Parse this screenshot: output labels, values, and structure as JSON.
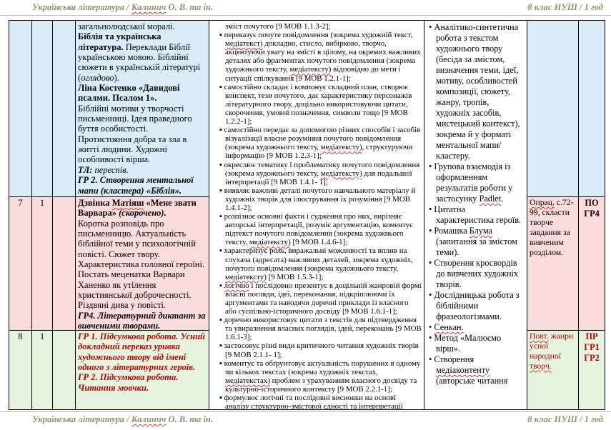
{
  "page": {
    "header_left": "Українська література / Калинич О. В. та ін.",
    "header_right": "8 клас НУШ / 1 год",
    "footer_left": "Українська література / Калинич О. В. та ін.",
    "footer_right": "8 клас НУШ / 1 год"
  },
  "colors": {
    "row_continuation_bg": "#d9ecf8",
    "row7_bg": "#fbdcdc",
    "row8_bg": "#e6f3de",
    "accent_red": "#c00000",
    "header_olive": "#8d9370",
    "spellcheck_red": "#e03a2f"
  },
  "spellcheck_words": [
    "Калинич",
    "медіатексту)",
    "медіатекст)",
    "медіатекстах)",
    "Матіяш",
    "логічно",
    "Padlet",
    "Блума",
    "Сенкан.",
    "медіаконтенту",
    "Опрац.",
    "Повт.",
    "творч."
  ],
  "lessons": [
    {
      "num": "",
      "hours": "",
      "date": ""
    },
    {
      "num": "7",
      "hours": "1",
      "date": ""
    },
    {
      "num": "8",
      "hours": "1",
      "date": ""
    }
  ],
  "topic1": {
    "p1": "загальнолюдської моралі.",
    "p2_bold": "Біблія та українська література.",
    "p2_text": " Переклади Біблії українською мовою. Біблійні сюжети в українській літературі (",
    "p2_italic": "оглядово",
    "p2_end": ").",
    "p3_bold": "Ліна Костенко «Давидові псалми. Псалом 1».",
    "p4": "Біблійні мотиви у творчості письменниці. Ідея праведного буття особистості.",
    "p5": "Протистояння добра та зла в житті людини. Художні особливості вірша.",
    "p6_label": "ТЛ:",
    "p6_italic": " переспів.",
    "p7": "ГР 2. Створення ментальної мапи (кластера) «Біблія»."
  },
  "topic2": {
    "p1_bold": "Дзвінка Матіяш «Мене звати Варвара» ",
    "p1_italic": "(скорочено).",
    "p2": "Коротка розповідь про письменницю. Актуальність біблійної теми у психологічній повісті. Сюжет твору.",
    "p3": "Характеристика головної героїні. Постать меценатки Варвари Ханенко як утілення християнської доброчесності.",
    "p4": "Різдвяні дива у повісті.",
    "p5": "ГР4. Літературний диктант за вивченими творами."
  },
  "topic3": {
    "p1": "ГР 1. Підсумкова робота. Усний докладний переказ уривка художнього твору від імені одного з літературних героїв.",
    "p2": "ГР 2. Підсумкова робота. Читання мовчки."
  },
  "results": {
    "intro": "зміст почутого [9 МОВ 1.1.3-2];",
    "items": [
      "переказує почуте повідомлення (зокрема художній текст, медіатекст) докладно, стисло, вибірково, творчо, акцентуючи увагу на змісті в цілому, на окремих важливих деталях або фрагментах почутого повідомлення (зокрема художнього тексту, медіатексту) відповідно до мети і ситуації спілкування [9 МОВ 1.2.1-1];",
      "самостійно складає і компонує складний план, створює конспект, тези почутого, дає характеристику персонажів літературного твору, доцільно використовуючи цитати, скорочення, умовні позначення, символи тощо [9 МОВ 1.2.2-1];",
      "самостійно передає за допомогою різних способів і засобів візуалізації власне розуміння почутого повідомлення (зокрема художнього тексту, медіатексту), структуруючи інформацію [9 МОВ 1.2.3-1];",
      "окреслює тематику і проблематику почутого повідомлення (зокрема художнього тексту, медіатексту) для подальшої інтерпретації [9 МОВ 1.4.1- 1];",
      "виявляє важливі деталі почутого навчального матеріалу й художніх творів для ілюстрування їх розуміння [9 МОВ 1.4.1-2];",
      "розпізнає основні факти і судження про них, вирізняє авторські інтерпретації, розуміє аргументацію, коментує підтекст почутого повідомлення (зокрема художнього тексту, медіатексту) [9 МОВ 1.4.6-1];",
      "характеризує роль, виражальні можливості та вплив на слухача (адресата) важливих деталей, зокрема художніх, почутого повідомлення (зокрема художнього тексту, медіатексту) [9 МОВ 1.5.3-1];",
      "логічно і послідовно презентує в доцільній жанровій формі власні погляди, ідеї, переконання, підкріплюючи їх аргументами та наводячи доречні приклади із власного або суспільно-історичного досвіду [9 МОВ 1.6.1-1];",
      "доречно використовує цитати з текстів для підтвердження та увиразнення власних поглядів, ідей, переконань [9 МОВ 1.6.1-3];",
      "застосовує різні види критичного читання художніх творів [9 МОВ 2.1.1- 1];",
      "коментує та обґрунтовує актуальність порушених в одному чи кількох текстах (зокрема художніх текстах, медіатекстах) проблем з урахуванням власного досвіду та культурно-історичного контексту [9 МОВ 2.2.1-1];",
      "формулює логічні та послідовні висновки на основі аналізу структурно-змістової єдності та інтерпретації кількох"
    ]
  },
  "activities": {
    "items": [
      "Аналітико-синтетична робота з текстом художнього твору (бесіда за змістом, визначення теми, ідеї, мотиву, особливостей композиції, сюжету, жанру, тропів, художніх засобів, мистецький контекст), зокрема й у форматі ментальної мапи/кластеру.",
      "Групова взаємодія із оформленням результатів роботи у застосунку Padlet.",
      "Цитатна характеристика героїв.",
      "Ромашка Блума (запитання за змістом теми).",
      "Створення кросвордів до вивчених художніх творів.",
      "Дослідницька робота з біблійними фразеологізмами.",
      "Сенкан.",
      "Метод «Малюємо вірш».",
      "Створення медіаконтенту (авторське читання"
    ]
  },
  "homework2": "Опрац. с.72-99, скласти творче завдання за вивченим розділом.",
  "homework3": "Повт. жанри усної народної творч.",
  "notes2": [
    "ПО",
    "ГР4"
  ],
  "notes3": [
    "ПР",
    "ГР1",
    "ГР2"
  ]
}
